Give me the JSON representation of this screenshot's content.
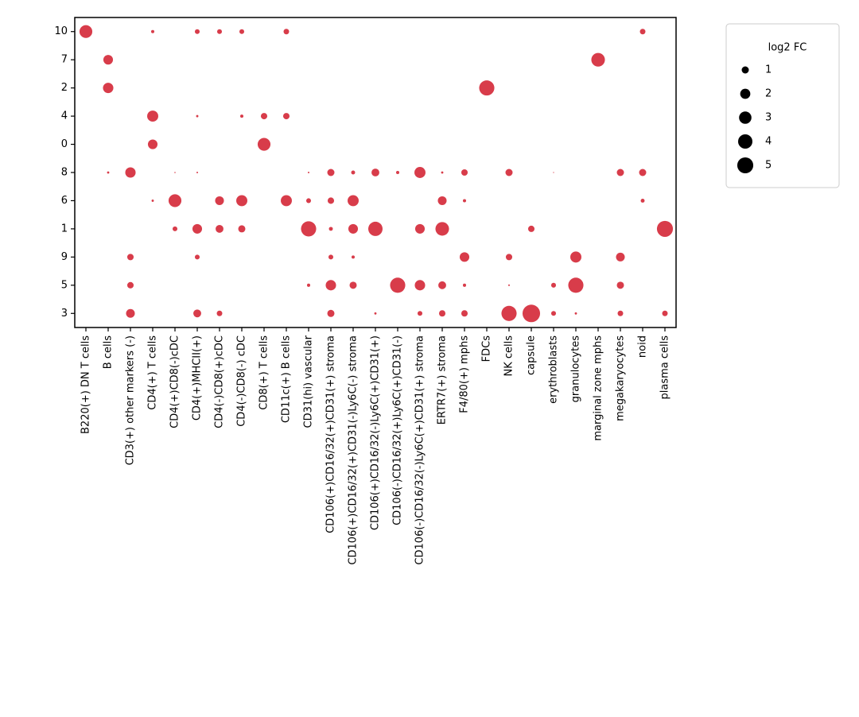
{
  "chart_data": {
    "type": "dotplot",
    "color": "#d83c4a",
    "x": [
      "B220(+) DN T cells",
      "B cells",
      "CD3(+) other markers (-)",
      "CD4(+) T cells",
      "CD4(+)CD8(-)cDC",
      "CD4(+)MHCII(+)",
      "CD4(-)CD8(+)cDC",
      "CD4(-)CD8(-) cDC",
      "CD8(+) T cells",
      "CD11c(+) B cells",
      "CD31(hi) vascular",
      "CD106(+)CD16/32(+)CD31(+) stroma",
      "CD106(+)CD16/32(+)CD31(-)Ly6C(-) stroma",
      "CD106(+)CD16/32(-)Ly6C(+)CD31(+)",
      "CD106(-)CD16/32(+)Ly6C(+)CD31(-)",
      "CD106(-)CD16/32(-)Ly6C(+)CD31(+) stroma",
      "ERTR7(+) stroma",
      "F4/80(+) mphs",
      "FDCs",
      "NK cells",
      "capsule",
      "erythroblasts",
      "granulocytes",
      "marginal zone mphs",
      "megakaryocytes",
      "noid",
      "plasma cells"
    ],
    "y": [
      "10",
      "7",
      "2",
      "4",
      "0",
      "8",
      "6",
      "1",
      "9",
      "5",
      "3"
    ],
    "values": [
      [
        3.2,
        null,
        null,
        0.2,
        null,
        0.45,
        0.45,
        0.45,
        null,
        0.6,
        null,
        null,
        null,
        null,
        null,
        null,
        null,
        null,
        null,
        null,
        null,
        null,
        null,
        null,
        null,
        0.6,
        null
      ],
      [
        null,
        1.8,
        null,
        null,
        null,
        null,
        null,
        null,
        null,
        null,
        null,
        null,
        null,
        null,
        null,
        null,
        null,
        null,
        null,
        null,
        null,
        null,
        null,
        3.6,
        null,
        null,
        null
      ],
      [
        null,
        2.1,
        null,
        null,
        null,
        null,
        null,
        null,
        null,
        null,
        null,
        null,
        null,
        null,
        null,
        null,
        null,
        null,
        4.5,
        null,
        null,
        null,
        null,
        null,
        null,
        null,
        null
      ],
      [
        null,
        null,
        null,
        2.4,
        null,
        0.1,
        null,
        0.2,
        0.8,
        0.8,
        null,
        null,
        null,
        null,
        null,
        null,
        null,
        null,
        null,
        null,
        null,
        null,
        null,
        null,
        null,
        null,
        null
      ],
      [
        null,
        null,
        null,
        1.8,
        null,
        null,
        null,
        null,
        3.2,
        null,
        null,
        null,
        null,
        null,
        null,
        null,
        null,
        null,
        null,
        null,
        null,
        null,
        null,
        null,
        null,
        null,
        null
      ],
      [
        null,
        0.1,
        2.1,
        null,
        0.03,
        0.05,
        null,
        null,
        null,
        null,
        0.05,
        1,
        0.3,
        1.2,
        0.2,
        2.4,
        0.1,
        0.8,
        null,
        1,
        null,
        0.02,
        null,
        null,
        1,
        1,
        null
      ],
      [
        null,
        null,
        null,
        0.1,
        3.2,
        null,
        1.5,
        2.4,
        null,
        2.4,
        0.45,
        0.8,
        2.4,
        null,
        null,
        null,
        1.5,
        0.2,
        null,
        null,
        null,
        null,
        null,
        null,
        null,
        0.3,
        null
      ],
      [
        null,
        null,
        null,
        null,
        0.45,
        1.8,
        1.2,
        1,
        null,
        null,
        4.5,
        0.3,
        1.8,
        4,
        null,
        1.8,
        3.6,
        null,
        null,
        null,
        0.8,
        null,
        null,
        null,
        null,
        null,
        5
      ],
      [
        null,
        null,
        0.8,
        null,
        null,
        0.45,
        null,
        null,
        null,
        null,
        null,
        0.45,
        0.2,
        null,
        null,
        null,
        null,
        1.8,
        null,
        0.8,
        null,
        null,
        2.4,
        null,
        1.5,
        null,
        null
      ],
      [
        null,
        null,
        0.8,
        null,
        null,
        null,
        null,
        null,
        null,
        null,
        0.2,
        2.1,
        1,
        null,
        4.5,
        2.1,
        1.2,
        0.2,
        null,
        0.05,
        null,
        0.45,
        4.5,
        null,
        1,
        null,
        null
      ],
      [
        null,
        null,
        1.5,
        null,
        null,
        1.2,
        0.6,
        null,
        null,
        null,
        null,
        1,
        null,
        0.1,
        null,
        0.45,
        0.8,
        0.8,
        null,
        4.5,
        6,
        0.45,
        0.1,
        null,
        0.6,
        null,
        0.6
      ]
    ],
    "size_legend": {
      "title": "log2 FC",
      "color": "#000000",
      "values": [
        1,
        2,
        3,
        4,
        5
      ]
    }
  }
}
